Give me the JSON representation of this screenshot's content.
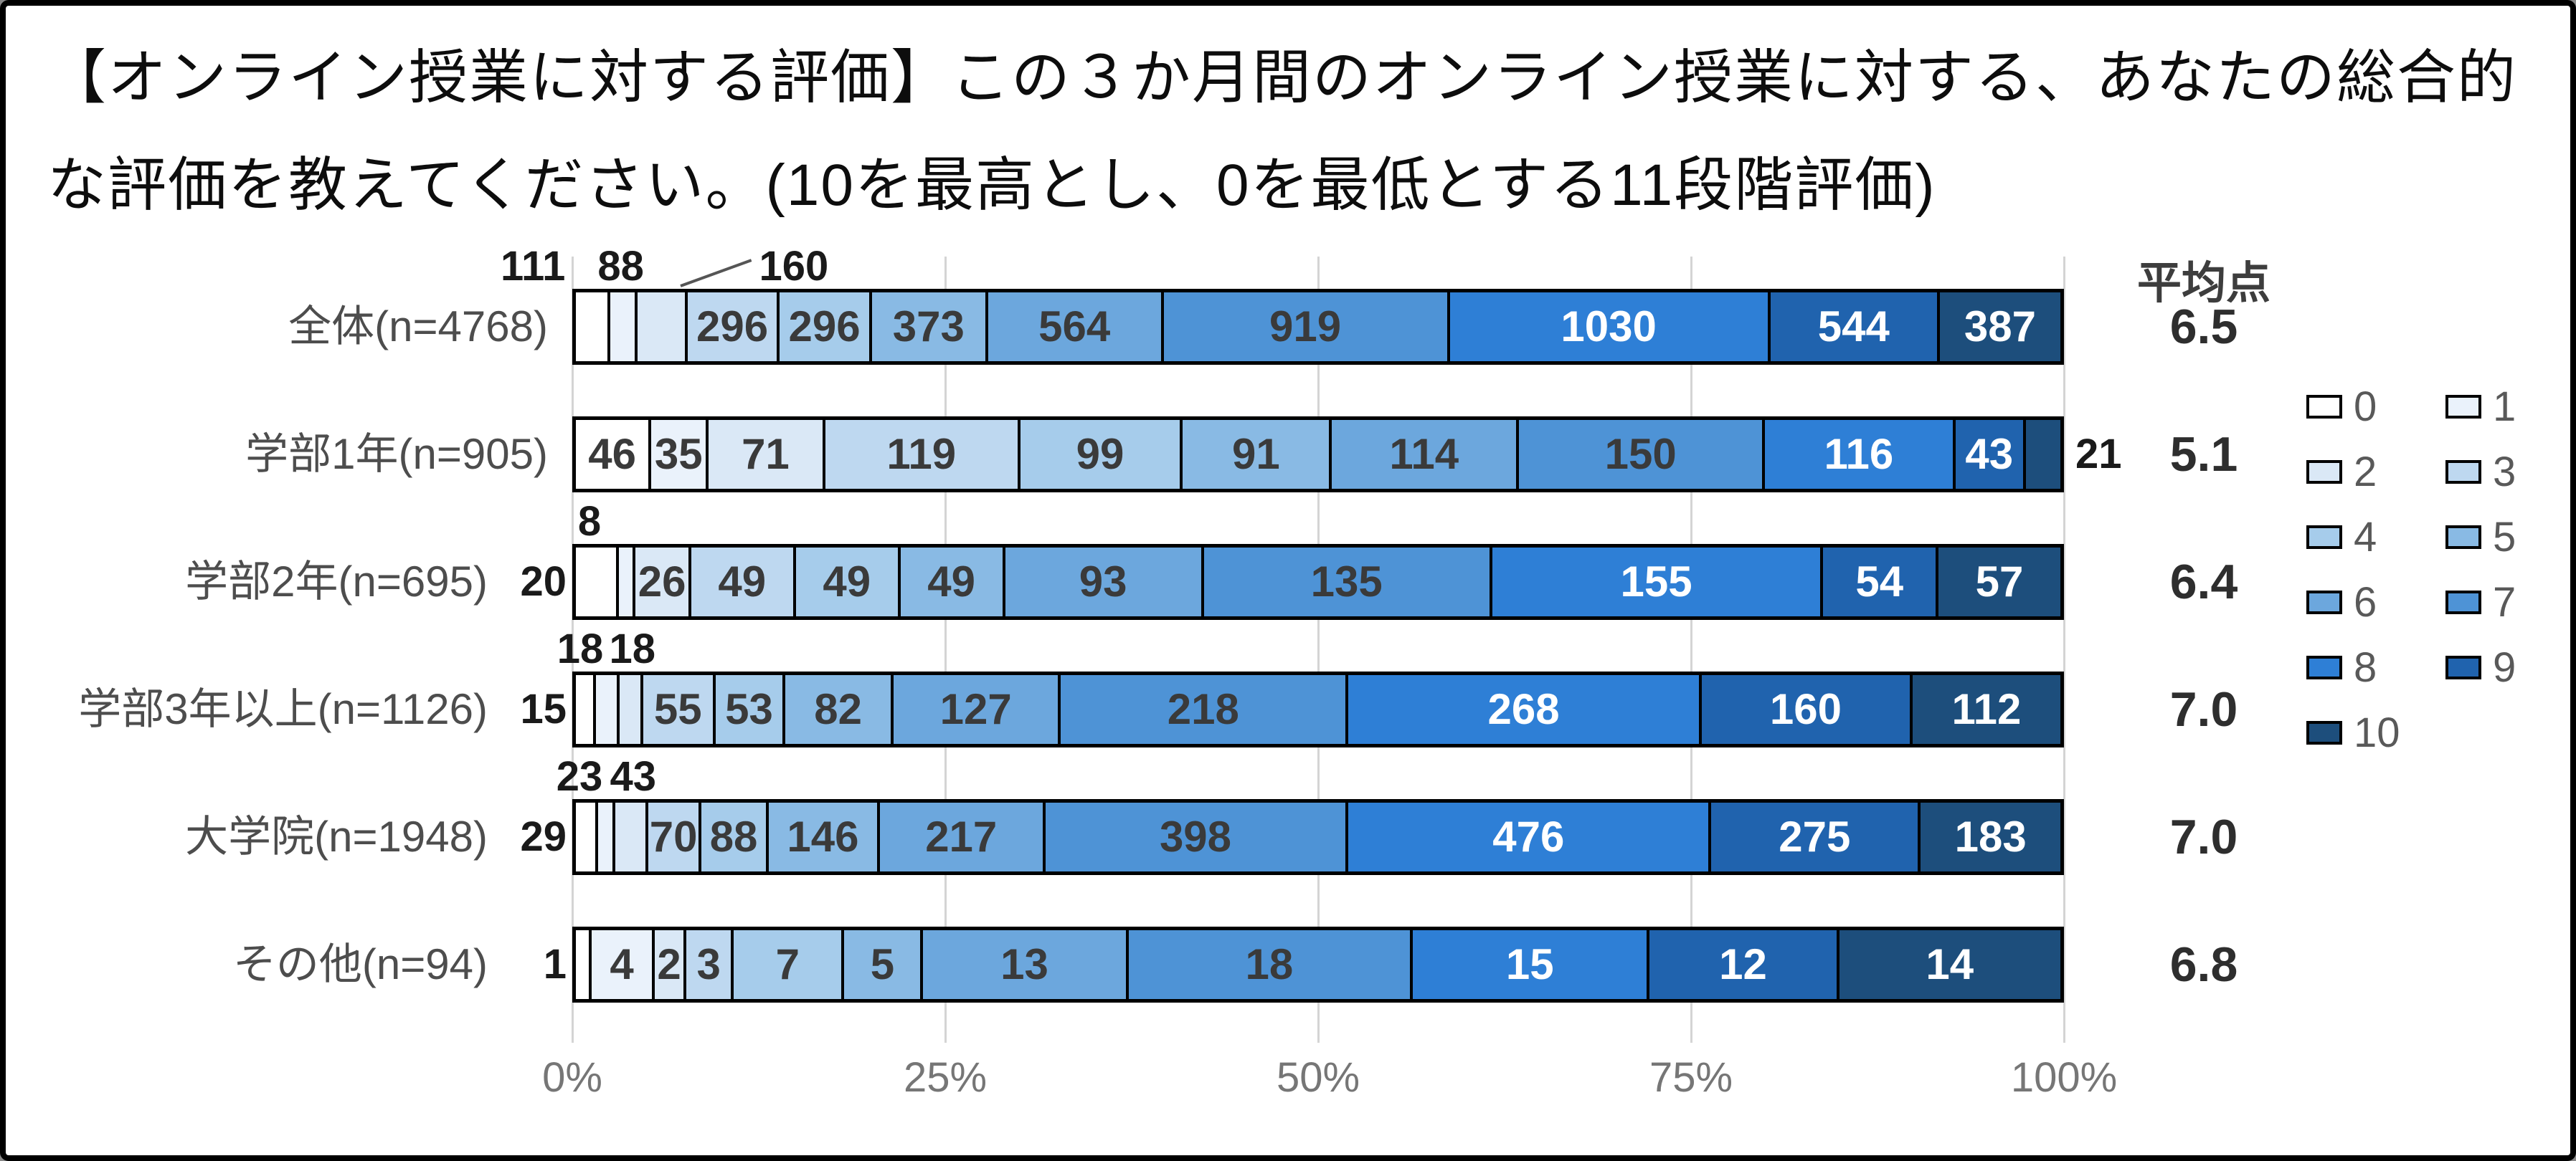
{
  "title": "【オンライン授業に対する評価】この３か月間のオンライン授業に対する、あなたの総合的な評価を教えてください。(10を最高とし、0を最低とする11段階評価)",
  "average_header": "平均点",
  "x_axis": {
    "ticks": [
      "0%",
      "25%",
      "50%",
      "75%",
      "100%"
    ]
  },
  "legend": {
    "position": "right",
    "items": [
      {
        "label": "0",
        "color": "#FFFFFF"
      },
      {
        "label": "1",
        "color": "#EAF2FB"
      },
      {
        "label": "2",
        "color": "#DAE8F6"
      },
      {
        "label": "3",
        "color": "#BED8F0"
      },
      {
        "label": "4",
        "color": "#A6CCEB"
      },
      {
        "label": "5",
        "color": "#89BAE4"
      },
      {
        "label": "6",
        "color": "#6CA7DD"
      },
      {
        "label": "7",
        "color": "#4E93D6"
      },
      {
        "label": "8",
        "color": "#2E7FD6"
      },
      {
        "label": "9",
        "color": "#2063AE"
      },
      {
        "label": "10",
        "color": "#1D4E7C"
      }
    ]
  },
  "style_colors": {
    "segment_border": "#000000",
    "inside_label_dark": "#3a3a3a",
    "inside_label_light": "#ffffff",
    "row_label": "#4d4d4d",
    "axis_label": "#767676",
    "gridline": "#d4d4d4",
    "outside_label": "#1a1a1a"
  },
  "chart_data": {
    "type": "bar",
    "orientation": "horizontal",
    "stacked": true,
    "x_axis_percent": [
      0,
      25,
      50,
      75,
      100
    ],
    "grid": true,
    "scale_labels": [
      "0",
      "1",
      "2",
      "3",
      "4",
      "5",
      "6",
      "7",
      "8",
      "9",
      "10"
    ],
    "white_text_from_score": 8,
    "rows": [
      {
        "label": "全体(n=4768)",
        "n": 4768,
        "average": "6.5",
        "values": [
          111,
          88,
          160,
          296,
          296,
          373,
          564,
          919,
          1030,
          544,
          387
        ],
        "label_placement": {
          "above": [
            {
              "i": 0,
              "dx": -3.8
            },
            {
              "i": 1,
              "dx": 0
            },
            {
              "i": 2,
              "dx": 9.0,
              "leader": true
            }
          ]
        }
      },
      {
        "label": "学部1年(n=905)",
        "n": 905,
        "average": "5.1",
        "values": [
          46,
          35,
          71,
          119,
          99,
          91,
          114,
          150,
          116,
          43,
          21
        ],
        "label_placement": {
          "right": [
            10
          ]
        }
      },
      {
        "label": "学部2年(n=695)",
        "n": 695,
        "average": "6.4",
        "values": [
          20,
          8,
          26,
          49,
          49,
          49,
          93,
          135,
          155,
          54,
          57
        ],
        "label_placement": {
          "left": [
            0
          ],
          "above": [
            {
              "i": 1,
              "dx": -2.3
            }
          ]
        }
      },
      {
        "label": "学部3年以上(n=1126)",
        "n": 1126,
        "average": "7.0",
        "values": [
          15,
          18,
          18,
          55,
          53,
          82,
          127,
          218,
          268,
          160,
          112
        ],
        "label_placement": {
          "left": [
            0
          ],
          "above": [
            {
              "i": 1,
              "dx": -1.6
            },
            {
              "i": 2,
              "dx": 0.3
            }
          ]
        }
      },
      {
        "label": "大学院(n=1948)",
        "n": 1948,
        "average": "7.0",
        "values": [
          29,
          23,
          43,
          70,
          88,
          146,
          217,
          398,
          476,
          275,
          183
        ],
        "label_placement": {
          "left": [
            0
          ],
          "above": [
            {
              "i": 1,
              "dx": -1.6
            },
            {
              "i": 2,
              "dx": 0.3
            }
          ]
        }
      },
      {
        "label": "その他(n=94)",
        "n": 94,
        "average": "6.8",
        "values": [
          1,
          4,
          2,
          3,
          7,
          5,
          13,
          18,
          15,
          12,
          14
        ],
        "label_placement": {
          "left": [
            0
          ]
        }
      }
    ]
  }
}
